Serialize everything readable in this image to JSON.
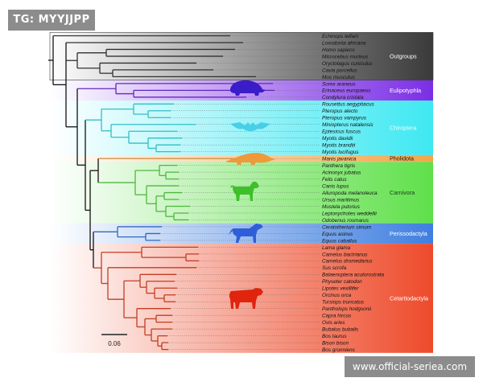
{
  "watermark_top": "TG: MYYJJPP",
  "watermark_bottom": "www.official-seriea.com",
  "scale_bar_label": "0.06",
  "species": [
    "Echinops telfairi",
    "Loxodonta africana",
    "Homo sapiens",
    "Microcebus murinus",
    "Oryctolagus cuniculus",
    "Cavia porcellus",
    "Mus musculus",
    "Sorex araneus",
    "Erinaceus europaeus",
    "Condylura cristata",
    "Rousettus aegyptiacus",
    "Pteropus alecto",
    "Pteropus vampyrus",
    "Miniopterus natalensis",
    "Eptesicus fuscus",
    "Myotis davidii",
    "Myotis brandtii",
    "Myotis lucifugus",
    "Manis javanica",
    "Panthera tigris",
    "Acinonyx jubatus",
    "Felis catus",
    "Canis lupus",
    "Ailuropoda melanoleuca",
    "Ursus maritimus",
    "Mustela putorius",
    "Leptonychotes weddellii",
    "Odobenus rosmarus",
    "Ceratotherium simum",
    "Equus asinus",
    "Equus caballus",
    "Lama glama",
    "Camelus bactrianus",
    "Camelus dromedarius",
    "Sus scrofa",
    "Balaenoptera acutorostrata",
    "Physeter catodon",
    "Lipotes vexillifer",
    "Orcinus orca",
    "Tursiops truncatus",
    "Pantholops hodgsonii",
    "Capra hircus",
    "Ovis aries",
    "Bubalus bubalis",
    "Bos taurus",
    "Bison bison",
    "Bos grunniens"
  ],
  "clades": [
    {
      "name": "Outgroups",
      "first": 0,
      "last": 6,
      "color": "#3a3a3a",
      "text_color": "#ffffff",
      "silhouette": "none"
    },
    {
      "name": "Eulipotyphla",
      "first": 7,
      "last": 9,
      "color": "#7b2ee6",
      "text_color": "#ffffff",
      "silhouette": "hedgehog"
    },
    {
      "name": "Chiroptera",
      "first": 10,
      "last": 17,
      "color": "#3ee8f2",
      "text_color": "#e8ffff",
      "silhouette": "bat"
    },
    {
      "name": "Pholidota",
      "first": 18,
      "last": 18,
      "color": "#f2a64a",
      "text_color": "#1a1a1a",
      "silhouette": "pangolin"
    },
    {
      "name": "Carnivora",
      "first": 19,
      "last": 27,
      "color": "#5fe04a",
      "text_color": "#1a3a1a",
      "silhouette": "dog"
    },
    {
      "name": "Perissodactyla",
      "first": 28,
      "last": 30,
      "color": "#3f7fe0",
      "text_color": "#ffffff",
      "silhouette": "horse"
    },
    {
      "name": "Cetartiodactyla",
      "first": 31,
      "last": 46,
      "color": "#ee4a2a",
      "text_color": "#ffffff",
      "silhouette": "cow"
    }
  ]
}
